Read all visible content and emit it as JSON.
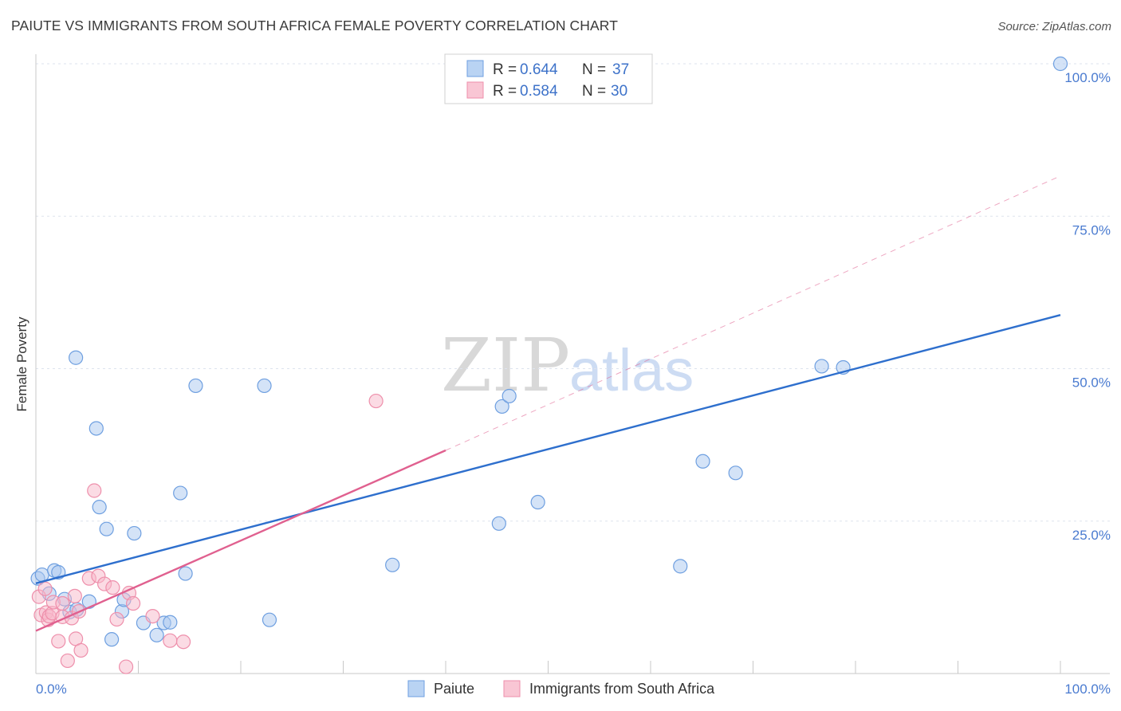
{
  "title": "PAIUTE VS IMMIGRANTS FROM SOUTH AFRICA FEMALE POVERTY CORRELATION CHART",
  "source": "Source: ZipAtlas.com",
  "watermark": {
    "zip": "ZIP",
    "atlas": "atlas"
  },
  "colors": {
    "blue_fill": "#a9c8f0",
    "blue_stroke": "#6e9fe0",
    "blue_line": "#2e6fcd",
    "pink_fill": "#f7b8c9",
    "pink_stroke": "#ee8fab",
    "pink_line": "#e0608f",
    "tick_text": "#4a7bd0",
    "grid": "#dde3ee"
  },
  "legend": {
    "rows": [
      {
        "r_label": "R = ",
        "r_value": "0.644",
        "n_label": "N = ",
        "n_value": "37"
      },
      {
        "r_label": "R = ",
        "r_value": "0.584",
        "n_label": "N = ",
        "n_value": "30"
      }
    ]
  },
  "chart_data": {
    "type": "scatter",
    "title": "PAIUTE VS IMMIGRANTS FROM SOUTH AFRICA FEMALE POVERTY CORRELATION CHART",
    "xlabel": "",
    "ylabel": "Female Poverty",
    "xlim": [
      0,
      100
    ],
    "ylim": [
      0,
      100
    ],
    "x_tick_labels": [
      "0.0%",
      "100.0%"
    ],
    "y_ticks": [
      {
        "value": 25,
        "label": "25.0%"
      },
      {
        "value": 50,
        "label": "50.0%"
      },
      {
        "value": 75,
        "label": "75.0%"
      },
      {
        "value": 100,
        "label": "100.0%"
      }
    ],
    "series": [
      {
        "name": "Paiute",
        "r": 0.644,
        "n": 37,
        "trend": {
          "x0": 0,
          "y0": 14.8,
          "x1": 100,
          "y1": 58.8,
          "style": "solid"
        },
        "points": [
          [
            0.2,
            15.6
          ],
          [
            0.6,
            16.2
          ],
          [
            1.3,
            13.1
          ],
          [
            1.8,
            16.9
          ],
          [
            2.2,
            16.6
          ],
          [
            2.8,
            12.2
          ],
          [
            3.3,
            10.1
          ],
          [
            4.0,
            10.5
          ],
          [
            3.9,
            51.8
          ],
          [
            5.2,
            11.8
          ],
          [
            5.9,
            40.2
          ],
          [
            6.2,
            27.3
          ],
          [
            6.9,
            23.7
          ],
          [
            7.4,
            5.6
          ],
          [
            8.4,
            10.2
          ],
          [
            8.6,
            12.1
          ],
          [
            9.6,
            23.0
          ],
          [
            10.5,
            8.3
          ],
          [
            11.8,
            6.3
          ],
          [
            12.5,
            8.3
          ],
          [
            13.1,
            8.4
          ],
          [
            14.1,
            29.6
          ],
          [
            14.6,
            16.4
          ],
          [
            15.6,
            47.2
          ],
          [
            22.3,
            47.2
          ],
          [
            22.8,
            8.8
          ],
          [
            34.8,
            17.8
          ],
          [
            45.2,
            24.6
          ],
          [
            45.5,
            43.8
          ],
          [
            46.2,
            45.5
          ],
          [
            49.0,
            28.1
          ],
          [
            62.9,
            17.6
          ],
          [
            65.1,
            34.8
          ],
          [
            68.3,
            32.9
          ],
          [
            76.7,
            50.4
          ],
          [
            78.8,
            50.2
          ],
          [
            100.0,
            100.0
          ]
        ]
      },
      {
        "name": "Immigrants from South Africa",
        "r": 0.584,
        "n": 30,
        "trend": {
          "x0": 0,
          "y0": 7.0,
          "x1": 40,
          "y1": 36.6,
          "style": "solid",
          "extension": {
            "x1": 100,
            "y1": 81.6,
            "style": "dashed"
          }
        },
        "points": [
          [
            0.3,
            12.6
          ],
          [
            0.5,
            9.6
          ],
          [
            0.9,
            13.9
          ],
          [
            1.0,
            10.0
          ],
          [
            1.2,
            8.8
          ],
          [
            1.3,
            9.4
          ],
          [
            1.6,
            9.9
          ],
          [
            1.7,
            11.7
          ],
          [
            2.2,
            5.3
          ],
          [
            2.6,
            11.5
          ],
          [
            2.6,
            9.3
          ],
          [
            3.1,
            2.1
          ],
          [
            3.5,
            9.1
          ],
          [
            3.8,
            12.7
          ],
          [
            3.9,
            5.7
          ],
          [
            4.2,
            10.2
          ],
          [
            4.4,
            3.8
          ],
          [
            5.2,
            15.6
          ],
          [
            5.7,
            30.0
          ],
          [
            6.1,
            16.0
          ],
          [
            6.7,
            14.7
          ],
          [
            7.5,
            14.1
          ],
          [
            7.9,
            8.9
          ],
          [
            8.8,
            1.1
          ],
          [
            9.1,
            13.2
          ],
          [
            9.5,
            11.5
          ],
          [
            11.4,
            9.4
          ],
          [
            13.1,
            5.4
          ],
          [
            14.4,
            5.2
          ],
          [
            33.2,
            44.7
          ]
        ]
      }
    ],
    "legend_position": "bottom-center"
  }
}
